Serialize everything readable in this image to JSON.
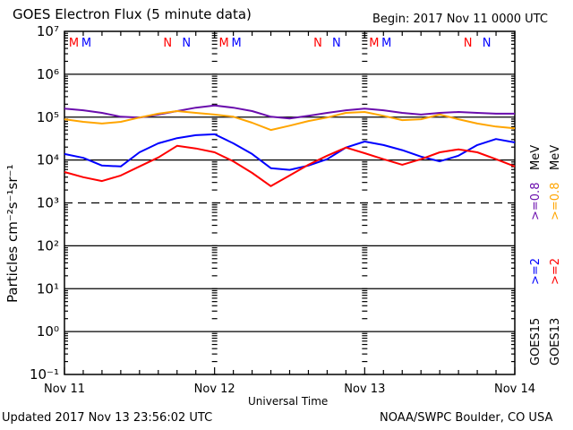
{
  "chart_data": {
    "type": "line",
    "title": "GOES Electron Flux (5 minute data)",
    "begin_label": "Begin: 2017 Nov 11 0000 UTC",
    "xlabel": "Universal Time",
    "ylabel": "Particles cm⁻²s⁻¹sr⁻¹",
    "yscale": "log",
    "ylim_log10": [
      -1,
      7
    ],
    "ytick_exponents": [
      7,
      6,
      5,
      4,
      3,
      2,
      1,
      0,
      -1
    ],
    "ytick_labels": [
      "10⁷",
      "10⁶",
      "10⁵",
      "10⁴",
      "10³",
      "10²",
      "10¹",
      "10⁰",
      "10⁻¹"
    ],
    "solid_gridlines_log10": [
      6,
      5,
      4,
      2,
      1,
      0
    ],
    "dashed_gridlines_log10": [
      3
    ],
    "xlim_hours": [
      0,
      72
    ],
    "xtick_labels": [
      {
        "hour": 0,
        "label": "Nov 11"
      },
      {
        "hour": 24,
        "label": "Nov 12"
      },
      {
        "hour": 48,
        "label": "Nov 13"
      },
      {
        "hour": 72,
        "label": "Nov 14"
      }
    ],
    "day_boundaries_hours": [
      24,
      48
    ],
    "x_hours": [
      0,
      3,
      6,
      9,
      12,
      15,
      18,
      21,
      24,
      27,
      30,
      33,
      36,
      39,
      42,
      45,
      48,
      51,
      54,
      57,
      60,
      63,
      66,
      69,
      72
    ],
    "series": [
      {
        "name": "GOES15 >=0.8 MeV",
        "color": "#6a0dad",
        "log10_values": [
          5.2,
          5.16,
          5.1,
          5.01,
          4.99,
          5.06,
          5.14,
          5.22,
          5.27,
          5.22,
          5.14,
          5.01,
          4.97,
          5.03,
          5.1,
          5.16,
          5.2,
          5.16,
          5.1,
          5.06,
          5.1,
          5.12,
          5.1,
          5.08,
          5.08
        ]
      },
      {
        "name": "GOES13 >=0.8 MeV",
        "color": "#ffa500",
        "log10_values": [
          4.95,
          4.89,
          4.85,
          4.89,
          4.99,
          5.08,
          5.14,
          5.1,
          5.06,
          5.01,
          4.87,
          4.7,
          4.8,
          4.91,
          4.99,
          5.1,
          5.12,
          5.03,
          4.93,
          4.95,
          5.06,
          4.95,
          4.85,
          4.78,
          4.74
        ]
      },
      {
        "name": "GOES15 >=2 MeV",
        "color": "#0000ff",
        "log10_values": [
          4.14,
          4.05,
          3.87,
          3.85,
          4.18,
          4.39,
          4.51,
          4.58,
          4.6,
          4.39,
          4.14,
          3.81,
          3.77,
          3.87,
          4.02,
          4.29,
          4.43,
          4.35,
          4.23,
          4.08,
          3.97,
          4.1,
          4.35,
          4.49,
          4.41
        ]
      },
      {
        "name": "GOES13 >=2 MeV",
        "color": "#ff0000",
        "log10_values": [
          3.72,
          3.6,
          3.51,
          3.64,
          3.85,
          4.06,
          4.33,
          4.27,
          4.18,
          3.97,
          3.7,
          3.39,
          3.64,
          3.89,
          4.1,
          4.29,
          4.16,
          4.02,
          3.89,
          4.02,
          4.18,
          4.25,
          4.18,
          4.02,
          3.85
        ]
      }
    ],
    "satellite_markers": {
      "GOES15": {
        "color": "#0000ff",
        "marks": [
          {
            "hour": 3.5,
            "label": "M"
          },
          {
            "hour": 19.5,
            "label": "N"
          },
          {
            "hour": 27.5,
            "label": "M"
          },
          {
            "hour": 43.5,
            "label": "N"
          },
          {
            "hour": 51.5,
            "label": "M"
          },
          {
            "hour": 67.5,
            "label": "N"
          }
        ]
      },
      "GOES13": {
        "color": "#ff0000",
        "marks": [
          {
            "hour": 1.5,
            "label": "M"
          },
          {
            "hour": 16.5,
            "label": "N"
          },
          {
            "hour": 25.5,
            "label": "M"
          },
          {
            "hour": 40.5,
            "label": "N"
          },
          {
            "hour": 49.5,
            "label": "M"
          },
          {
            "hour": 64.5,
            "label": "N"
          }
        ]
      }
    },
    "legend": {
      "placement": "right",
      "columns": [
        {
          "satellite": "GOES15",
          "entries": [
            {
              "text": ">=2",
              "color": "#0000ff"
            },
            {
              "text": ">=0.8",
              "color": "#6a0dad"
            },
            {
              "text": "MeV",
              "color": "#000000"
            }
          ]
        },
        {
          "satellite": "GOES13",
          "entries": [
            {
              "text": ">=2",
              "color": "#ff0000"
            },
            {
              "text": ">=0.8",
              "color": "#ffa500"
            },
            {
              "text": "MeV",
              "color": "#000000"
            }
          ]
        }
      ]
    }
  },
  "footer": {
    "updated": "Updated 2017 Nov 13 23:56:02 UTC",
    "credit": "NOAA/SWPC Boulder, CO USA"
  }
}
